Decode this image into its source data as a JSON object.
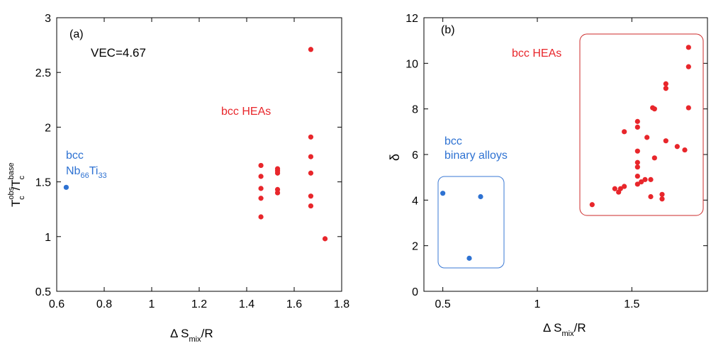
{
  "chart_data": [
    {
      "panel_label": "(a)",
      "type": "scatter",
      "xlabel": {
        "main": "Δ S",
        "sub": "mix",
        "tail": "/R"
      },
      "ylabel": {
        "main1": "T",
        "sup1": "obs",
        "sub1": "c",
        "mid": "/T",
        "sup2": "base",
        "sub2": "c"
      },
      "xlim": [
        0.6,
        1.8
      ],
      "ylim": [
        0.5,
        3
      ],
      "xticks": [
        "0.6",
        "0.8",
        "1",
        "1.2",
        "1.4",
        "1.6",
        "1.8"
      ],
      "yticks": [
        "0.5",
        "1",
        "1.5",
        "2",
        "2.5",
        "3"
      ],
      "annotations": {
        "vec": "VEC=4.67",
        "hea_label": "bcc HEAs",
        "binary_line1": "bcc",
        "binary_line2": {
          "a": "Nb",
          "a_sub": "66",
          "b": "Ti",
          "b_sub": "33"
        }
      },
      "colors": {
        "hea": "#e8262b",
        "binary": "#2e72d2"
      },
      "series": [
        {
          "group": "binary",
          "points": [
            [
              0.64,
              1.45
            ]
          ]
        },
        {
          "group": "hea",
          "points": [
            [
              1.46,
              1.65
            ],
            [
              1.46,
              1.55
            ],
            [
              1.46,
              1.44
            ],
            [
              1.46,
              1.35
            ],
            [
              1.46,
              1.18
            ],
            [
              1.53,
              1.62
            ],
            [
              1.53,
              1.6
            ],
            [
              1.53,
              1.58
            ],
            [
              1.53,
              1.43
            ],
            [
              1.53,
              1.4
            ],
            [
              1.67,
              2.71
            ],
            [
              1.67,
              1.91
            ],
            [
              1.67,
              1.73
            ],
            [
              1.67,
              1.58
            ],
            [
              1.67,
              1.37
            ],
            [
              1.67,
              1.28
            ],
            [
              1.73,
              0.98
            ]
          ]
        }
      ]
    },
    {
      "panel_label": "(b)",
      "type": "scatter",
      "xlabel": {
        "main": "Δ S",
        "sub": "mix",
        "tail": "/R"
      },
      "ylabel": {
        "main1": "δ"
      },
      "xlim": [
        0.4,
        1.9
      ],
      "ylim": [
        0,
        12
      ],
      "xticks": [
        "0.5",
        "1",
        "1.5"
      ],
      "xtick_values": [
        0.5,
        1,
        1.5
      ],
      "yticks": [
        "0",
        "2",
        "4",
        "6",
        "8",
        "10",
        "12"
      ],
      "annotations": {
        "hea_label": "bcc HEAs",
        "binary_line1": "bcc",
        "binary_line2": "binary alloys"
      },
      "colors": {
        "hea": "#e8262b",
        "binary": "#2e72d2"
      },
      "series": [
        {
          "group": "binary",
          "points": [
            [
              0.5,
              4.3
            ],
            [
              0.7,
              4.15
            ],
            [
              0.64,
              1.45
            ]
          ]
        },
        {
          "group": "hea",
          "points": [
            [
              1.29,
              3.8
            ],
            [
              1.41,
              4.5
            ],
            [
              1.43,
              4.35
            ],
            [
              1.44,
              4.5
            ],
            [
              1.46,
              4.6
            ],
            [
              1.46,
              7.0
            ],
            [
              1.53,
              7.45
            ],
            [
              1.53,
              7.2
            ],
            [
              1.53,
              6.15
            ],
            [
              1.53,
              5.65
            ],
            [
              1.53,
              5.45
            ],
            [
              1.53,
              5.05
            ],
            [
              1.53,
              4.7
            ],
            [
              1.55,
              4.8
            ],
            [
              1.57,
              4.9
            ],
            [
              1.58,
              6.75
            ],
            [
              1.6,
              4.9
            ],
            [
              1.6,
              4.15
            ],
            [
              1.61,
              8.05
            ],
            [
              1.62,
              8.0
            ],
            [
              1.62,
              5.85
            ],
            [
              1.66,
              4.25
            ],
            [
              1.66,
              4.05
            ],
            [
              1.68,
              9.1
            ],
            [
              1.68,
              8.9
            ],
            [
              1.68,
              6.6
            ],
            [
              1.74,
              6.35
            ],
            [
              1.78,
              6.2
            ],
            [
              1.8,
              10.7
            ],
            [
              1.8,
              9.85
            ],
            [
              1.8,
              8.05
            ]
          ]
        }
      ]
    }
  ]
}
